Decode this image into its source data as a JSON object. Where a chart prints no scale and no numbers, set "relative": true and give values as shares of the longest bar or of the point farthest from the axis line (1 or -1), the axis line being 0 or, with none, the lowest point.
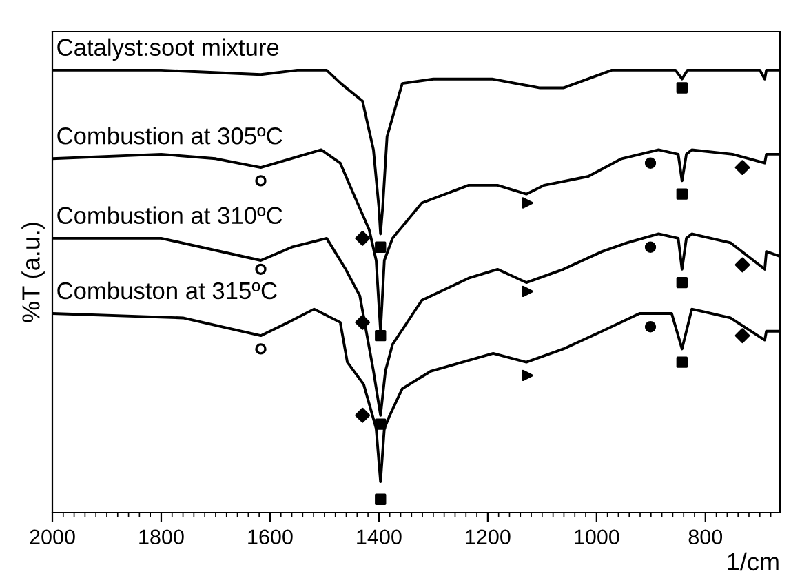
{
  "chart_data": {
    "type": "line",
    "ylabel": "%T (a.u.)",
    "xlabel": "1/cm",
    "relative": true,
    "xlim": [
      2000,
      663
    ],
    "xticks": [
      2000,
      1800,
      1600,
      1400,
      1200,
      1000,
      800
    ],
    "tick_labels": "x",
    "grid": false,
    "marker": "none",
    "line_style": "solid",
    "series": [
      {
        "name": "Catalyst:soot mixture",
        "color": "#000000",
        "x": [
          2000,
          1800,
          1617,
          1550,
          1496,
          1470,
          1430,
          1410,
          1400,
          1397,
          1393,
          1385,
          1357,
          1300,
          1192,
          1104,
          1061,
          972,
          900,
          855,
          843,
          833,
          700,
          691,
          688,
          665
        ],
        "values": [
          1.0,
          1.0,
          0.99,
          1.0,
          1.0,
          0.97,
          0.93,
          0.82,
          0.69,
          0.63,
          0.69,
          0.85,
          0.97,
          0.98,
          0.98,
          0.96,
          0.96,
          1.0,
          1.0,
          1.0,
          0.98,
          1.0,
          1.0,
          0.98,
          1.0,
          1.0
        ]
      },
      {
        "name": "Combustion at 305ºC",
        "color": "#000000",
        "x": [
          2000,
          1800,
          1700,
          1617,
          1506,
          1471,
          1443,
          1418,
          1405,
          1397,
          1390,
          1375,
          1321,
          1235,
          1182,
          1129,
          1096,
          1015,
          954,
          886,
          850,
          843,
          835,
          825,
          750,
          691,
          688,
          665
        ],
        "values": [
          0.8,
          0.81,
          0.8,
          0.78,
          0.82,
          0.79,
          0.71,
          0.64,
          0.57,
          0.41,
          0.57,
          0.62,
          0.7,
          0.74,
          0.74,
          0.72,
          0.74,
          0.76,
          0.8,
          0.82,
          0.81,
          0.75,
          0.81,
          0.82,
          0.81,
          0.79,
          0.81,
          0.81
        ]
      },
      {
        "name": "Combustion at 310ºC",
        "color": "#000000",
        "x": [
          2000,
          1800,
          1617,
          1560,
          1496,
          1461,
          1435,
          1410,
          1397,
          1388,
          1375,
          1321,
          1235,
          1182,
          1129,
          1061,
          990,
          944,
          886,
          850,
          843,
          835,
          825,
          754,
          691,
          688,
          665
        ],
        "values": [
          0.62,
          0.62,
          0.57,
          0.6,
          0.62,
          0.55,
          0.49,
          0.32,
          0.22,
          0.32,
          0.38,
          0.48,
          0.53,
          0.55,
          0.52,
          0.55,
          0.59,
          0.61,
          0.63,
          0.62,
          0.55,
          0.62,
          0.63,
          0.61,
          0.55,
          0.59,
          0.58
        ]
      },
      {
        "name": "Combuston at 315ºC",
        "color": "#000000",
        "x": [
          2000,
          1760,
          1617,
          1567,
          1519,
          1471,
          1458,
          1428,
          1405,
          1397,
          1390,
          1380,
          1357,
          1304,
          1190,
          1129,
          1061,
          990,
          921,
          862,
          843,
          825,
          754,
          691,
          688,
          665
        ],
        "values": [
          0.45,
          0.44,
          0.4,
          0.43,
          0.46,
          0.43,
          0.34,
          0.29,
          0.19,
          0.07,
          0.19,
          0.22,
          0.28,
          0.32,
          0.36,
          0.34,
          0.37,
          0.41,
          0.45,
          0.45,
          0.37,
          0.46,
          0.44,
          0.39,
          0.41,
          0.41
        ]
      },
      {
        "type": "scatter",
        "marker": "open_circle",
        "color": "#000000",
        "x": [
          1617,
          1617,
          1617
        ],
        "values": [
          0.75,
          0.55,
          0.37
        ]
      },
      {
        "type": "scatter",
        "marker": "square",
        "color": "#000000",
        "x": [
          1397,
          1397,
          1397,
          1397,
          843,
          843,
          843,
          843
        ],
        "values": [
          0.6,
          0.4,
          0.2,
          0.03,
          0.96,
          0.72,
          0.52,
          0.34
        ]
      },
      {
        "type": "scatter",
        "marker": "triangle",
        "color": "#000000",
        "x": [
          1127,
          1127,
          1127
        ],
        "values": [
          0.7,
          0.5,
          0.31
        ]
      },
      {
        "type": "scatter",
        "marker": "diamond",
        "color": "#000000",
        "x": [
          1430,
          1430,
          1430,
          732,
          732,
          732
        ],
        "values": [
          0.62,
          0.43,
          0.22,
          0.78,
          0.56,
          0.4
        ]
      },
      {
        "type": "scatter",
        "marker": "circle",
        "color": "#000000",
        "x": [
          901,
          901,
          901
        ],
        "values": [
          0.79,
          0.6,
          0.42
        ]
      }
    ]
  }
}
